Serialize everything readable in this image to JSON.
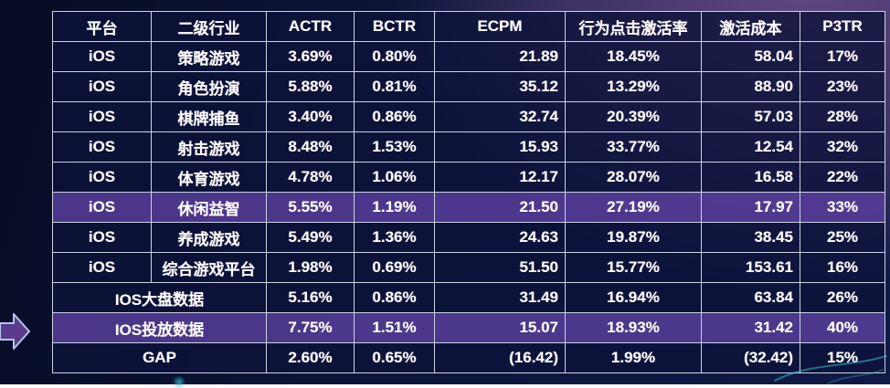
{
  "chart_data": {
    "type": "table",
    "columns": [
      {
        "key": "platform",
        "label": "平台",
        "align": "center"
      },
      {
        "key": "industry",
        "label": "二级行业",
        "align": "center"
      },
      {
        "key": "actr",
        "label": "ACTR",
        "align": "center"
      },
      {
        "key": "bctr",
        "label": "BCTR",
        "align": "center"
      },
      {
        "key": "ecpm",
        "label": "ECPM",
        "align": "right"
      },
      {
        "key": "rate",
        "label": "行为点击激活率",
        "align": "center"
      },
      {
        "key": "cost",
        "label": "激活成本",
        "align": "right"
      },
      {
        "key": "p3tr",
        "label": "P3TR",
        "align": "center"
      }
    ],
    "rows": [
      {
        "type": "data",
        "highlight": false,
        "cells": {
          "platform": "iOS",
          "industry": "策略游戏",
          "actr": "3.69%",
          "bctr": "0.80%",
          "ecpm": "21.89",
          "rate": "18.45%",
          "cost": "58.04",
          "p3tr": "17%"
        }
      },
      {
        "type": "data",
        "highlight": false,
        "cells": {
          "platform": "iOS",
          "industry": "角色扮演",
          "actr": "5.88%",
          "bctr": "0.81%",
          "ecpm": "35.12",
          "rate": "13.29%",
          "cost": "88.90",
          "p3tr": "23%"
        }
      },
      {
        "type": "data",
        "highlight": false,
        "cells": {
          "platform": "iOS",
          "industry": "棋牌捕鱼",
          "actr": "3.40%",
          "bctr": "0.86%",
          "ecpm": "32.74",
          "rate": "20.39%",
          "cost": "57.03",
          "p3tr": "28%"
        }
      },
      {
        "type": "data",
        "highlight": false,
        "cells": {
          "platform": "iOS",
          "industry": "射击游戏",
          "actr": "8.48%",
          "bctr": "1.53%",
          "ecpm": "15.93",
          "rate": "33.77%",
          "cost": "12.54",
          "p3tr": "32%"
        }
      },
      {
        "type": "data",
        "highlight": false,
        "cells": {
          "platform": "iOS",
          "industry": "体育游戏",
          "actr": "4.78%",
          "bctr": "1.06%",
          "ecpm": "12.17",
          "rate": "28.07%",
          "cost": "16.58",
          "p3tr": "22%"
        }
      },
      {
        "type": "data",
        "highlight": true,
        "cells": {
          "platform": "iOS",
          "industry": "休闲益智",
          "actr": "5.55%",
          "bctr": "1.19%",
          "ecpm": "21.50",
          "rate": "27.19%",
          "cost": "17.97",
          "p3tr": "33%"
        }
      },
      {
        "type": "data",
        "highlight": false,
        "cells": {
          "platform": "iOS",
          "industry": "养成游戏",
          "actr": "5.49%",
          "bctr": "1.36%",
          "ecpm": "24.63",
          "rate": "19.87%",
          "cost": "38.45",
          "p3tr": "25%"
        }
      },
      {
        "type": "data",
        "highlight": false,
        "cells": {
          "platform": "iOS",
          "industry": "综合游戏平台",
          "actr": "1.98%",
          "bctr": "0.69%",
          "ecpm": "51.50",
          "rate": "15.77%",
          "cost": "153.61",
          "p3tr": "16%"
        }
      },
      {
        "type": "summary",
        "highlight": false,
        "label": "IOS大盘数据",
        "cells": {
          "actr": "5.16%",
          "bctr": "0.86%",
          "ecpm": "31.49",
          "rate": "16.94%",
          "cost": "63.84",
          "p3tr": "26%"
        }
      },
      {
        "type": "summary",
        "highlight": true,
        "label": "IOS投放数据",
        "cells": {
          "actr": "7.75%",
          "bctr": "1.51%",
          "ecpm": "15.07",
          "rate": "18.93%",
          "cost": "31.42",
          "p3tr": "40%"
        }
      },
      {
        "type": "summary",
        "highlight": false,
        "label": "GAP",
        "cells": {
          "actr": "2.60%",
          "bctr": "0.65%",
          "ecpm": "(16.42)",
          "rate": "1.99%",
          "cost": "(32.42)",
          "p3tr": "15%"
        }
      }
    ]
  },
  "colors": {
    "background_navy": "#0c1539",
    "background_purple": "#533f74",
    "cell_fill": "#131c46",
    "highlight_fill": "#43307a",
    "border": "#ccd3e4",
    "text": "#ffffff",
    "arrow_fill": "#5a3b8c",
    "arrow_stroke": "#b9c4ea",
    "swoosh_teal": "#3fc6da"
  },
  "decorations": {
    "pointer_arrow_target": "IOS投放数据"
  }
}
